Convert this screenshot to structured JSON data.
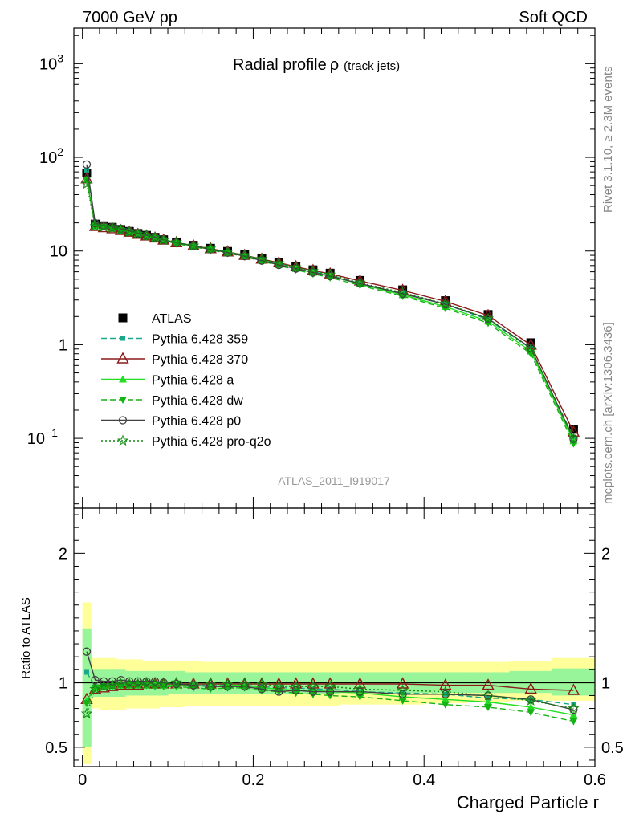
{
  "header": {
    "left": "7000 GeV pp",
    "right": "Soft QCD"
  },
  "side_labels": {
    "top": "Rivet 3.1.10, ≥ 2.3M events",
    "bottom": "mcplots.cern.ch [arXiv:1306.3436]"
  },
  "watermark": "ATLAS_2011_I919017",
  "colors": {
    "atlas": "#000000",
    "p359": "#1aa88a",
    "p370": "#8b1a1a",
    "pa": "#22dd22",
    "pdw": "#14b414",
    "pp0": "#404040",
    "ppro": "#108a10",
    "band_yellow": "#ffff99",
    "band_green": "#99f599"
  },
  "chart_data": [
    {
      "type": "line",
      "panel": "main",
      "title": "Radial profile",
      "title_symbol": "ρ",
      "subtitle": "(track jets)",
      "xlabel": "Charged Particle r",
      "ylabel": "",
      "y_scale": "log",
      "xlim": [
        -0.01,
        0.6
      ],
      "ylim": [
        0.018,
        2400
      ],
      "y_ticks": [
        "10",
        "1",
        "10"
      ],
      "y_tick_values": [
        1000,
        100,
        10,
        1,
        0.1
      ],
      "y_tick_labels": [
        {
          "base": "10",
          "exp": "3"
        },
        {
          "base": "10",
          "exp": "2"
        },
        {
          "base": "10",
          "exp": ""
        },
        {
          "base": "1",
          "exp": ""
        },
        {
          "base": "10",
          "exp": "−1"
        }
      ],
      "legend_position": "center-left",
      "x": [
        0.005,
        0.015,
        0.025,
        0.035,
        0.045,
        0.055,
        0.065,
        0.075,
        0.085,
        0.095,
        0.11,
        0.13,
        0.15,
        0.17,
        0.19,
        0.21,
        0.23,
        0.25,
        0.27,
        0.29,
        0.325,
        0.375,
        0.425,
        0.475,
        0.525,
        0.575
      ],
      "series": [
        {
          "name": "ATLAS",
          "key": "atlas",
          "marker": "square",
          "style": "none",
          "values": [
            68,
            19.4,
            18.6,
            17.9,
            17,
            16.2,
            15.4,
            14.7,
            14,
            13.2,
            12.4,
            11.5,
            10.7,
            9.9,
            9.1,
            8.3,
            7.6,
            6.9,
            6.3,
            5.8,
            4.85,
            3.85,
            2.95,
            2.1,
            1.05,
            0.125
          ]
        },
        {
          "name": "Pythia 6.428 359",
          "key": "p359",
          "marker": "square-small",
          "style": "dashed",
          "values": [
            73,
            18.8,
            18,
            17.4,
            16.6,
            15.8,
            15.1,
            14.4,
            13.7,
            13,
            12.2,
            11.3,
            10.5,
            9.7,
            8.9,
            8.1,
            7.3,
            6.6,
            6,
            5.5,
            4.5,
            3.55,
            2.7,
            1.85,
            0.91,
            0.103
          ]
        },
        {
          "name": "Pythia 6.428 370",
          "key": "p370",
          "marker": "triangle-open",
          "style": "solid",
          "values": [
            59,
            18.3,
            17.8,
            17.3,
            16.6,
            15.9,
            15.1,
            14.5,
            13.8,
            13.1,
            12.3,
            11.4,
            10.6,
            9.8,
            9,
            8.2,
            7.5,
            6.8,
            6.2,
            5.7,
            4.8,
            3.8,
            2.9,
            2.05,
            0.99,
            0.117
          ]
        },
        {
          "name": "Pythia 6.428 a",
          "key": "pa",
          "marker": "triangle",
          "style": "solid",
          "values": [
            58,
            18.7,
            18.2,
            17.5,
            16.7,
            15.9,
            15.2,
            14.4,
            13.8,
            13,
            12.2,
            11.3,
            10.4,
            9.7,
            8.9,
            8,
            7.2,
            6.5,
            5.9,
            5.4,
            4.45,
            3.4,
            2.55,
            1.78,
            0.85,
            0.094
          ]
        },
        {
          "name": "Pythia 6.428 dw",
          "key": "pdw",
          "marker": "triangle-down",
          "style": "dashed",
          "values": [
            57,
            18.6,
            18.1,
            17.4,
            16.6,
            15.8,
            15,
            14.3,
            13.6,
            12.8,
            12,
            11.1,
            10.2,
            9.5,
            8.7,
            7.8,
            7,
            6.3,
            5.7,
            5.2,
            4.3,
            3.3,
            2.45,
            1.7,
            0.8,
            0.088
          ]
        },
        {
          "name": "Pythia 6.428 p0",
          "key": "pp0",
          "marker": "circle-open",
          "style": "solid",
          "values": [
            84,
            19.8,
            18.7,
            18.1,
            17.3,
            16.4,
            15.5,
            14.8,
            14.1,
            13.2,
            12.3,
            11.3,
            10.4,
            9.6,
            8.8,
            7.9,
            7.1,
            6.5,
            5.9,
            5.4,
            4.5,
            3.5,
            2.7,
            1.9,
            0.92,
            0.099
          ]
        },
        {
          "name": "Pythia 6.428 pro-q2o",
          "key": "ppro",
          "marker": "star",
          "style": "dotted",
          "values": [
            52,
            18.4,
            18.1,
            17.5,
            16.8,
            16,
            15.3,
            14.6,
            13.9,
            13.1,
            12.4,
            11.4,
            10.6,
            9.8,
            9,
            8.2,
            7.4,
            6.7,
            6.1,
            5.6,
            4.6,
            3.6,
            2.75,
            1.9,
            0.9,
            0.1
          ]
        }
      ]
    },
    {
      "type": "line",
      "panel": "ratio",
      "ylabel": "Ratio to ATLAS",
      "xlabel": "Charged Particle r",
      "xlim": [
        -0.01,
        0.6
      ],
      "ylim": [
        0.35,
        2.35
      ],
      "y_ticks": [
        "0.5",
        "1",
        "2"
      ],
      "y_tick_values": [
        0.5,
        1,
        2
      ],
      "x_ticks": [
        "0",
        "0.2",
        "0.4",
        "0.6"
      ],
      "x_tick_values": [
        0,
        0.2,
        0.4,
        0.6
      ],
      "x": [
        0.005,
        0.015,
        0.025,
        0.035,
        0.045,
        0.055,
        0.065,
        0.075,
        0.085,
        0.095,
        0.11,
        0.13,
        0.15,
        0.17,
        0.19,
        0.21,
        0.23,
        0.25,
        0.27,
        0.29,
        0.325,
        0.375,
        0.425,
        0.475,
        0.525,
        0.575
      ],
      "bin_edges": [
        0,
        0.01,
        0.02,
        0.03,
        0.04,
        0.05,
        0.06,
        0.07,
        0.08,
        0.09,
        0.1,
        0.12,
        0.14,
        0.16,
        0.18,
        0.2,
        0.22,
        0.24,
        0.26,
        0.28,
        0.3,
        0.35,
        0.4,
        0.45,
        0.5,
        0.55,
        0.6
      ],
      "band_yellow": [
        [
          0.37,
          1.62
        ],
        [
          0.8,
          1.19
        ],
        [
          0.79,
          1.19
        ],
        [
          0.79,
          1.19
        ],
        [
          0.79,
          1.18
        ],
        [
          0.8,
          1.18
        ],
        [
          0.8,
          1.18
        ],
        [
          0.8,
          1.17
        ],
        [
          0.8,
          1.17
        ],
        [
          0.81,
          1.17
        ],
        [
          0.81,
          1.17
        ],
        [
          0.82,
          1.17
        ],
        [
          0.82,
          1.16
        ],
        [
          0.82,
          1.16
        ],
        [
          0.82,
          1.16
        ],
        [
          0.82,
          1.16
        ],
        [
          0.82,
          1.16
        ],
        [
          0.82,
          1.16
        ],
        [
          0.82,
          1.16
        ],
        [
          0.82,
          1.16
        ],
        [
          0.83,
          1.16
        ],
        [
          0.83,
          1.16
        ],
        [
          0.84,
          1.16
        ],
        [
          0.85,
          1.16
        ],
        [
          0.86,
          1.17
        ],
        [
          0.86,
          1.19
        ]
      ],
      "band_green": [
        [
          0.5,
          1.42
        ],
        [
          0.89,
          1.1
        ],
        [
          0.89,
          1.1
        ],
        [
          0.89,
          1.1
        ],
        [
          0.89,
          1.1
        ],
        [
          0.9,
          1.09
        ],
        [
          0.9,
          1.09
        ],
        [
          0.9,
          1.09
        ],
        [
          0.9,
          1.09
        ],
        [
          0.9,
          1.09
        ],
        [
          0.91,
          1.09
        ],
        [
          0.91,
          1.08
        ],
        [
          0.91,
          1.08
        ],
        [
          0.91,
          1.08
        ],
        [
          0.91,
          1.08
        ],
        [
          0.91,
          1.08
        ],
        [
          0.91,
          1.08
        ],
        [
          0.91,
          1.08
        ],
        [
          0.91,
          1.08
        ],
        [
          0.91,
          1.08
        ],
        [
          0.92,
          1.08
        ],
        [
          0.92,
          1.08
        ],
        [
          0.92,
          1.08
        ],
        [
          0.92,
          1.08
        ],
        [
          0.92,
          1.09
        ],
        [
          0.9,
          1.11
        ]
      ],
      "series": [
        {
          "name": "Pythia 6.428 359",
          "key": "p359",
          "marker": "square-small",
          "style": "dashed",
          "values": [
            1.08,
            0.97,
            0.97,
            0.97,
            0.98,
            0.98,
            0.98,
            0.98,
            0.98,
            0.98,
            0.98,
            0.98,
            0.98,
            0.98,
            0.98,
            0.97,
            0.96,
            0.96,
            0.95,
            0.95,
            0.93,
            0.92,
            0.91,
            0.88,
            0.87,
            0.83
          ]
        },
        {
          "name": "Pythia 6.428 370",
          "key": "p370",
          "marker": "triangle-open",
          "style": "solid",
          "values": [
            0.87,
            0.95,
            0.96,
            0.97,
            0.98,
            0.98,
            0.98,
            0.99,
            0.99,
            0.99,
            0.99,
            0.99,
            0.99,
            0.99,
            0.99,
            0.99,
            0.99,
            0.99,
            0.99,
            0.99,
            0.99,
            0.99,
            0.98,
            0.98,
            0.95,
            0.94
          ]
        },
        {
          "name": "Pythia 6.428 a",
          "key": "pa",
          "marker": "triangle",
          "style": "solid",
          "values": [
            0.86,
            0.96,
            0.98,
            0.98,
            0.98,
            0.98,
            0.98,
            0.98,
            0.99,
            0.98,
            0.98,
            0.98,
            0.97,
            0.98,
            0.98,
            0.96,
            0.95,
            0.94,
            0.94,
            0.93,
            0.92,
            0.89,
            0.87,
            0.85,
            0.81,
            0.75
          ]
        },
        {
          "name": "Pythia 6.428 dw",
          "key": "pdw",
          "marker": "triangle-down",
          "style": "dashed",
          "values": [
            0.84,
            0.96,
            0.97,
            0.97,
            0.98,
            0.98,
            0.98,
            0.98,
            0.97,
            0.97,
            0.97,
            0.96,
            0.95,
            0.96,
            0.96,
            0.94,
            0.93,
            0.92,
            0.91,
            0.9,
            0.89,
            0.86,
            0.83,
            0.81,
            0.77,
            0.7
          ]
        },
        {
          "name": "Pythia 6.428 p0",
          "key": "pp0",
          "marker": "circle-open",
          "style": "solid",
          "values": [
            1.24,
            1.02,
            1.01,
            1.01,
            1.02,
            1.01,
            1.01,
            1.01,
            1.01,
            1,
            0.99,
            0.98,
            0.97,
            0.97,
            0.97,
            0.95,
            0.93,
            0.94,
            0.93,
            0.93,
            0.93,
            0.91,
            0.91,
            0.9,
            0.87,
            0.79
          ]
        },
        {
          "name": "Pythia 6.428 pro-q2o",
          "key": "ppro",
          "marker": "star",
          "style": "dotted",
          "values": [
            0.76,
            0.95,
            0.97,
            0.98,
            0.99,
            0.99,
            0.99,
            0.99,
            0.99,
            0.99,
            1,
            0.99,
            0.99,
            0.99,
            0.99,
            0.99,
            0.97,
            0.97,
            0.97,
            0.97,
            0.95,
            0.94,
            0.93,
            0.9,
            0.86,
            0.8
          ]
        }
      ]
    }
  ]
}
